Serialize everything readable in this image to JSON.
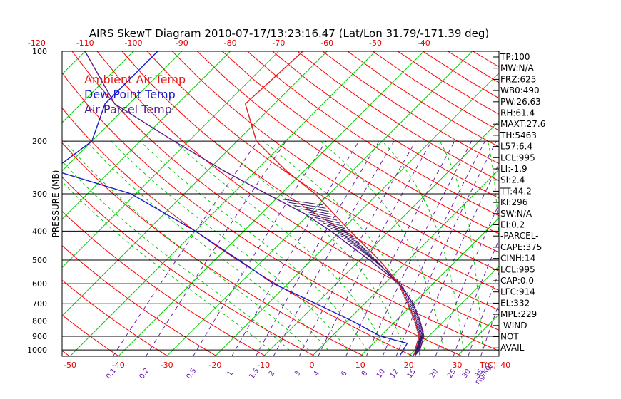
{
  "chart_data": {
    "type": "skewt",
    "title": "AIRS SkewT Diagram 2010-07-17/13:23:16.47 (Lat/Lon 31.79/-171.39 deg)",
    "ylabel": "PRESSURE (MB)",
    "pressure_ticks": [
      100,
      200,
      300,
      400,
      500,
      600,
      700,
      800,
      900,
      1000
    ],
    "pressure_range": [
      100,
      1050
    ],
    "temp_axis_label": "T(C)",
    "top_temp_ticks": [
      -120,
      -110,
      -100,
      -90,
      -80,
      -70,
      -60,
      -50,
      -40
    ],
    "bottom_temp_ticks": [
      -50,
      -40,
      -30,
      -20,
      -10,
      0,
      10,
      20,
      30,
      40
    ],
    "mixing_ratio_label": "r(g/kg)",
    "mixing_ratio_ticks": [
      0.1,
      0.2,
      0.5,
      1,
      1.5,
      2,
      3,
      4,
      6,
      8,
      10,
      12,
      15,
      20,
      25,
      30,
      35
    ],
    "legend": [
      {
        "label": "Ambient Air Temp",
        "color": "#e02020"
      },
      {
        "label": "Dew Point Temp",
        "color": "#1a1acc"
      },
      {
        "label": "Air Parcel Temp",
        "color": "#5a1a8a"
      }
    ],
    "series": [
      {
        "name": "Ambient Air Temp",
        "color": "#e02020",
        "points": [
          [
            100,
            -65
          ],
          [
            150,
            -66
          ],
          [
            200,
            -56
          ],
          [
            250,
            -44
          ],
          [
            300,
            -33
          ],
          [
            350,
            -25
          ],
          [
            400,
            -18
          ],
          [
            500,
            -6
          ],
          [
            600,
            3
          ],
          [
            700,
            9
          ],
          [
            800,
            14
          ],
          [
            900,
            18
          ],
          [
            1000,
            20
          ],
          [
            1040,
            21
          ]
        ]
      },
      {
        "name": "Dew Point Temp",
        "color": "#1a1acc",
        "points": [
          [
            100,
            -95
          ],
          [
            150,
            -95
          ],
          [
            200,
            -90
          ],
          [
            250,
            -92
          ],
          [
            300,
            -71
          ],
          [
            400,
            -50
          ],
          [
            500,
            -35
          ],
          [
            600,
            -23
          ],
          [
            700,
            -10
          ],
          [
            800,
            1
          ],
          [
            900,
            10
          ],
          [
            950,
            17
          ],
          [
            1040,
            18
          ]
        ]
      },
      {
        "name": "Air Parcel Temp",
        "color": "#5a1a8a",
        "points": [
          [
            100,
            -110
          ],
          [
            150,
            -93
          ],
          [
            200,
            -73
          ],
          [
            250,
            -57
          ],
          [
            300,
            -43
          ],
          [
            350,
            -31
          ],
          [
            400,
            -22
          ],
          [
            500,
            -8
          ],
          [
            600,
            3
          ],
          [
            700,
            10
          ],
          [
            800,
            15
          ],
          [
            900,
            19
          ],
          [
            1000,
            21
          ],
          [
            1040,
            22
          ]
        ]
      }
    ],
    "stats": [
      "TP:100",
      "MW:N/A",
      "FRZ:625",
      "WB0:490",
      "PW:26.63",
      "RH:61.4",
      "MAXT:27.6",
      "TH:5463",
      "L57:6.4",
      "LCL:995",
      "LI:-1.9",
      "SI:2.4",
      "TT:44.2",
      "KI:296",
      "SW:N/A",
      "EI:0.2",
      "-PARCEL-",
      "CAPE:375",
      "CINH:14",
      "LCL:995",
      "CAP:0.0",
      "LFC:914",
      "EL:332",
      "MPL:229",
      "-WIND-",
      "NOT",
      "AVAIL"
    ]
  }
}
